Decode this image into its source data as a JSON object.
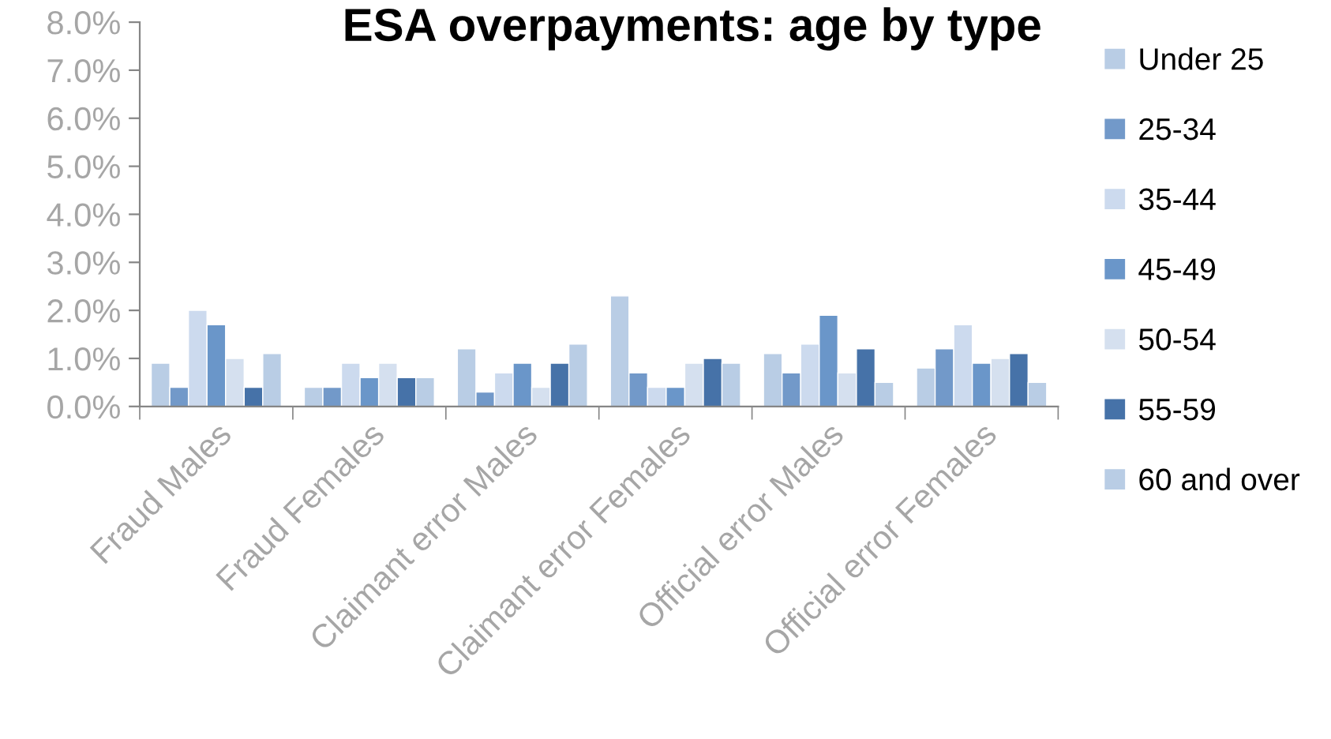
{
  "chart_data": {
    "type": "bar",
    "title": "ESA overpayments: age by type",
    "categories": [
      "Fraud Males",
      "Fraud Females",
      "Claimant error Males",
      "Claimant error Females",
      "Official error Males",
      "Official error Females"
    ],
    "series": [
      {
        "name": "Under 25",
        "color": "#b9cde5",
        "values": [
          0.9,
          0.4,
          1.2,
          2.3,
          1.1,
          0.8
        ]
      },
      {
        "name": "25-34",
        "color": "#7299c9",
        "values": [
          0.4,
          0.4,
          0.3,
          0.7,
          0.7,
          1.2
        ]
      },
      {
        "name": "35-44",
        "color": "#ccdaee",
        "values": [
          2.0,
          0.9,
          0.7,
          0.4,
          1.3,
          1.7
        ]
      },
      {
        "name": "45-49",
        "color": "#6a96c9",
        "values": [
          1.7,
          0.6,
          0.9,
          0.4,
          1.9,
          0.9
        ]
      },
      {
        "name": "50-54",
        "color": "#d5e0ef",
        "values": [
          1.0,
          0.9,
          0.4,
          0.9,
          0.7,
          1.0
        ]
      },
      {
        "name": "55-59",
        "color": "#4672a8",
        "values": [
          0.4,
          0.6,
          0.9,
          1.0,
          1.2,
          1.1
        ]
      },
      {
        "name": "60 and over",
        "color": "#b9cde5",
        "values": [
          1.1,
          0.6,
          1.3,
          0.9,
          0.5,
          0.5
        ]
      }
    ],
    "ylim": [
      0,
      8
    ],
    "yticks": [
      {
        "value": 0,
        "label": "0.0%"
      },
      {
        "value": 1,
        "label": "1.0%"
      },
      {
        "value": 2,
        "label": "2.0%"
      },
      {
        "value": 3,
        "label": "3.0%"
      },
      {
        "value": 4,
        "label": "4.0%"
      },
      {
        "value": 5,
        "label": "5.0%"
      },
      {
        "value": 6,
        "label": "6.0%"
      },
      {
        "value": 7,
        "label": "7.0%"
      },
      {
        "value": 8,
        "label": "8.0%"
      }
    ],
    "grid": false,
    "legend": "right"
  }
}
